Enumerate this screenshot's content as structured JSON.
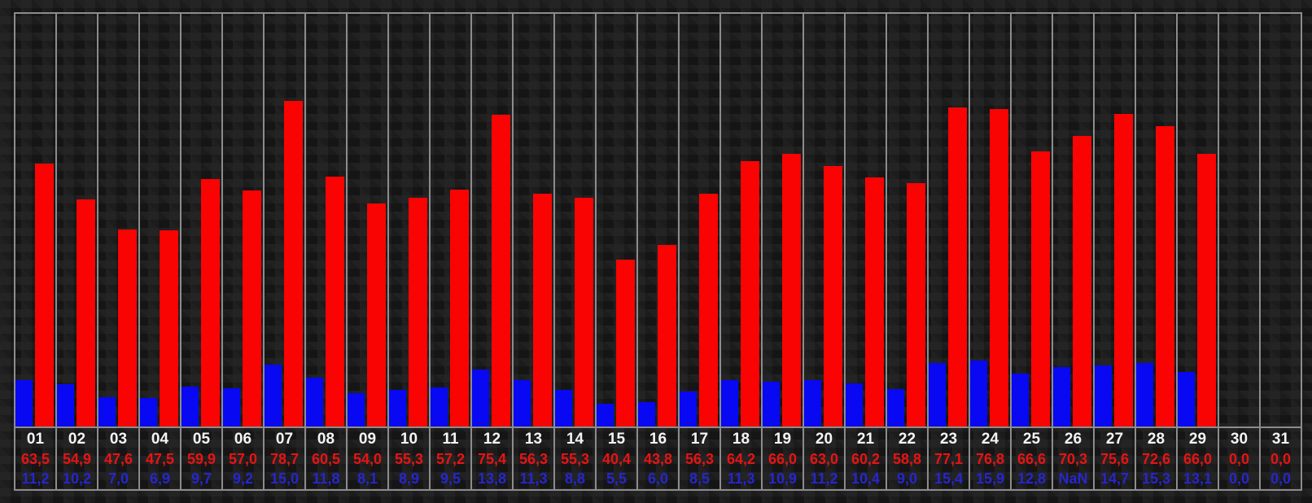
{
  "chart_data": {
    "type": "bar",
    "title": "",
    "xlabel": "",
    "ylabel": "",
    "ylim": [
      0,
      100
    ],
    "legend": "none",
    "gridlines": "vertical",
    "categories": [
      "01",
      "02",
      "03",
      "04",
      "05",
      "06",
      "07",
      "08",
      "09",
      "10",
      "11",
      "12",
      "13",
      "14",
      "15",
      "16",
      "17",
      "18",
      "19",
      "20",
      "21",
      "22",
      "23",
      "24",
      "25",
      "26",
      "27",
      "28",
      "29",
      "30",
      "31"
    ],
    "series": [
      {
        "name": "red-series",
        "color": "#fa0303",
        "values": [
          63.5,
          54.9,
          47.6,
          47.5,
          59.9,
          57.0,
          78.7,
          60.5,
          54.0,
          55.3,
          57.2,
          75.4,
          56.3,
          55.3,
          40.4,
          43.8,
          56.3,
          64.2,
          66.0,
          63.0,
          60.2,
          58.8,
          77.1,
          76.8,
          66.6,
          70.3,
          75.6,
          72.6,
          66.0,
          0.0,
          0.0
        ]
      },
      {
        "name": "blue-series",
        "color": "#0808f2",
        "values": [
          11.2,
          10.2,
          7.0,
          6.9,
          9.7,
          9.2,
          15.0,
          11.8,
          8.1,
          8.9,
          9.5,
          13.8,
          11.3,
          8.8,
          5.5,
          6.0,
          8.5,
          11.3,
          10.9,
          11.2,
          10.4,
          9.0,
          15.4,
          15.9,
          12.8,
          "NaN",
          14.7,
          15.3,
          13.1,
          0.0,
          0.0
        ]
      }
    ],
    "nan_bar_value": 14.3
  },
  "days": [
    {
      "day": "01",
      "red": "63,5",
      "blue": "11,2"
    },
    {
      "day": "02",
      "red": "54,9",
      "blue": "10,2"
    },
    {
      "day": "03",
      "red": "47,6",
      "blue": "7,0"
    },
    {
      "day": "04",
      "red": "47,5",
      "blue": "6,9"
    },
    {
      "day": "05",
      "red": "59,9",
      "blue": "9,7"
    },
    {
      "day": "06",
      "red": "57,0",
      "blue": "9,2"
    },
    {
      "day": "07",
      "red": "78,7",
      "blue": "15,0"
    },
    {
      "day": "08",
      "red": "60,5",
      "blue": "11,8"
    },
    {
      "day": "09",
      "red": "54,0",
      "blue": "8,1"
    },
    {
      "day": "10",
      "red": "55,3",
      "blue": "8,9"
    },
    {
      "day": "11",
      "red": "57,2",
      "blue": "9,5"
    },
    {
      "day": "12",
      "red": "75,4",
      "blue": "13,8"
    },
    {
      "day": "13",
      "red": "56,3",
      "blue": "11,3"
    },
    {
      "day": "14",
      "red": "55,3",
      "blue": "8,8"
    },
    {
      "day": "15",
      "red": "40,4",
      "blue": "5,5"
    },
    {
      "day": "16",
      "red": "43,8",
      "blue": "6,0"
    },
    {
      "day": "17",
      "red": "56,3",
      "blue": "8,5"
    },
    {
      "day": "18",
      "red": "64,2",
      "blue": "11,3"
    },
    {
      "day": "19",
      "red": "66,0",
      "blue": "10,9"
    },
    {
      "day": "20",
      "red": "63,0",
      "blue": "11,2"
    },
    {
      "day": "21",
      "red": "60,2",
      "blue": "10,4"
    },
    {
      "day": "22",
      "red": "58,8",
      "blue": "9,0"
    },
    {
      "day": "23",
      "red": "77,1",
      "blue": "15,4"
    },
    {
      "day": "24",
      "red": "76,8",
      "blue": "15,9"
    },
    {
      "day": "25",
      "red": "66,6",
      "blue": "12,8"
    },
    {
      "day": "26",
      "red": "70,3",
      "blue": "NaN"
    },
    {
      "day": "27",
      "red": "75,6",
      "blue": "14,7"
    },
    {
      "day": "28",
      "red": "72,6",
      "blue": "15,3"
    },
    {
      "day": "29",
      "red": "66,0",
      "blue": "13,1"
    },
    {
      "day": "30",
      "red": "0,0",
      "blue": "0,0"
    },
    {
      "day": "31",
      "red": "0,0",
      "blue": "0,0"
    }
  ],
  "colors": {
    "background": "#171717",
    "gridline": "#8c8c8c",
    "red_bar": "#fa0303",
    "blue_bar": "#0808f2",
    "red_text": "#e81313",
    "blue_text": "#2626cf",
    "day_text": "#f4f4f4"
  }
}
